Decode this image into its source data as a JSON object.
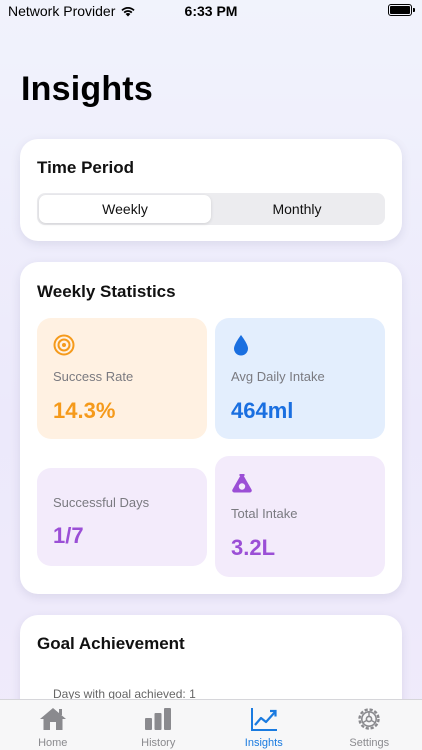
{
  "status_bar": {
    "carrier": "Network Provider",
    "time": "6:33 PM"
  },
  "page": {
    "title": "Insights"
  },
  "time_period": {
    "title": "Time Period",
    "options": [
      "Weekly",
      "Monthly"
    ],
    "selected": "Weekly"
  },
  "weekly_statistics": {
    "title": "Weekly Statistics",
    "success_rate": {
      "label": "Success Rate",
      "value": "14.3%",
      "color": "#f59a1b",
      "icon": "target-icon"
    },
    "avg_daily_intake": {
      "label": "Avg Daily Intake",
      "value": "464ml",
      "color": "#1a6fe0",
      "icon": "water-drop-icon"
    },
    "successful_days": {
      "label": "Successful Days",
      "value": "1/7",
      "color": "#9b4fd6"
    },
    "total_intake": {
      "label": "Total Intake",
      "value": "3.2L",
      "color": "#9b4fd6",
      "icon": "flask-icon"
    }
  },
  "goal_achievement": {
    "title": "Goal Achievement",
    "subtitle": "Days with goal achieved: 1"
  },
  "tab_bar": {
    "items": [
      {
        "label": "Home",
        "icon": "house-icon"
      },
      {
        "label": "History",
        "icon": "bar-chart-icon"
      },
      {
        "label": "Insights",
        "icon": "trend-chart-icon"
      },
      {
        "label": "Settings",
        "icon": "gear-icon"
      }
    ],
    "active": "Insights",
    "accent": "#1a7be0"
  }
}
